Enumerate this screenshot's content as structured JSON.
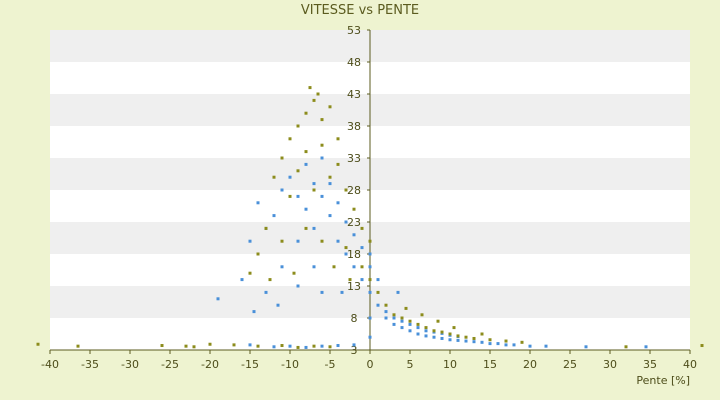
{
  "chart_data": {
    "type": "scatter",
    "title": "VITESSE vs PENTE",
    "xlabel": "Pente [%]",
    "ylabel": "",
    "xlim": [
      -40,
      40
    ],
    "ylim": [
      3,
      53
    ],
    "x_ticks": [
      "-40",
      "-35",
      "-30",
      "-25",
      "-20",
      "-15",
      "-10",
      "-5",
      "0",
      "5",
      "10",
      "15",
      "20",
      "25",
      "30",
      "35",
      "40"
    ],
    "y_ticks": [
      "3",
      "8",
      "13",
      "18",
      "23",
      "28",
      "33",
      "38",
      "43",
      "48",
      "53"
    ],
    "grid": "horizontal-bands",
    "legend": "none",
    "colors": {
      "series_a": "#4a90d9",
      "series_b": "#8c8c1c",
      "axis": "#5b5b1f",
      "band": "#efefef",
      "plot_bg": "#ffffff"
    },
    "series": [
      {
        "color": "#4a90d9",
        "points": [
          [
            -14,
            26
          ],
          [
            -13,
            22
          ],
          [
            -12,
            24
          ],
          [
            -11,
            28
          ],
          [
            -10,
            30
          ],
          [
            -9,
            27
          ],
          [
            -9,
            20
          ],
          [
            -8,
            32
          ],
          [
            -8,
            25
          ],
          [
            -7,
            29
          ],
          [
            -7,
            22
          ],
          [
            -6,
            27
          ],
          [
            -6,
            33
          ],
          [
            -5,
            24
          ],
          [
            -5,
            29
          ],
          [
            -4,
            26
          ],
          [
            -4,
            20
          ],
          [
            -3,
            23
          ],
          [
            -3,
            18
          ],
          [
            -2,
            21
          ],
          [
            -2,
            16
          ],
          [
            -1,
            19
          ],
          [
            -1,
            14
          ],
          [
            0,
            18
          ],
          [
            0,
            12
          ],
          [
            0,
            8
          ],
          [
            0,
            5
          ],
          [
            0,
            16
          ],
          [
            1,
            10
          ],
          [
            1,
            14
          ],
          [
            2,
            9
          ],
          [
            2,
            8
          ],
          [
            3,
            7
          ],
          [
            3,
            8
          ],
          [
            4,
            6.5
          ],
          [
            4,
            7.5
          ],
          [
            5,
            6
          ],
          [
            5,
            7
          ],
          [
            6,
            5.5
          ],
          [
            6,
            6.5
          ],
          [
            7,
            5.2
          ],
          [
            7,
            6.0
          ],
          [
            8,
            5.0
          ],
          [
            8,
            5.8
          ],
          [
            9,
            4.8
          ],
          [
            9,
            5.6
          ],
          [
            10,
            4.6
          ],
          [
            10,
            5.3
          ],
          [
            11,
            4.5
          ],
          [
            11,
            5.1
          ],
          [
            12,
            4.4
          ],
          [
            13,
            4.3
          ],
          [
            14,
            4.2
          ],
          [
            15,
            4.0
          ],
          [
            16,
            4.0
          ],
          [
            17,
            3.8
          ],
          [
            18,
            3.8
          ],
          [
            20,
            3.6
          ],
          [
            22,
            3.6
          ],
          [
            27,
            3.5
          ],
          [
            -19,
            11
          ],
          [
            -16,
            14
          ],
          [
            -15,
            20
          ],
          [
            -13,
            12
          ],
          [
            -11,
            16
          ],
          [
            -9,
            13
          ],
          [
            -7,
            16
          ],
          [
            -6,
            12
          ],
          [
            -15,
            3.8
          ],
          [
            -12,
            3.5
          ],
          [
            -10,
            3.6
          ],
          [
            -8,
            3.4
          ],
          [
            -6,
            3.6
          ],
          [
            -4,
            3.7
          ],
          [
            -2,
            3.8
          ],
          [
            34.5,
            3.5
          ],
          [
            -14.5,
            9
          ],
          [
            -11.5,
            10
          ],
          [
            -3.5,
            12
          ],
          [
            3.5,
            12
          ]
        ]
      },
      {
        "color": "#8c8c1c",
        "points": [
          [
            -10,
            36
          ],
          [
            -9,
            38
          ],
          [
            -8,
            40
          ],
          [
            -7,
            42
          ],
          [
            -6,
            39
          ],
          [
            -5,
            41
          ],
          [
            -4,
            36
          ],
          [
            -8,
            34
          ],
          [
            -6,
            35
          ],
          [
            -4,
            32
          ],
          [
            -11,
            33
          ],
          [
            -12,
            30
          ],
          [
            -10,
            27
          ],
          [
            -9,
            31
          ],
          [
            -7,
            28
          ],
          [
            -5,
            30
          ],
          [
            -3,
            28
          ],
          [
            -2,
            25
          ],
          [
            -1,
            22
          ],
          [
            0,
            20
          ],
          [
            -13,
            22
          ],
          [
            -14,
            18
          ],
          [
            -11,
            20
          ],
          [
            -8,
            22
          ],
          [
            -6,
            20
          ],
          [
            -3,
            19
          ],
          [
            -1,
            16
          ],
          [
            0,
            14
          ],
          [
            1,
            12
          ],
          [
            2,
            10
          ],
          [
            3,
            8.5
          ],
          [
            4,
            8
          ],
          [
            5,
            7.5
          ],
          [
            6,
            7
          ],
          [
            7,
            6.5
          ],
          [
            8,
            6
          ],
          [
            9,
            5.8
          ],
          [
            10,
            5.5
          ],
          [
            11,
            5.2
          ],
          [
            12,
            5.0
          ],
          [
            13,
            4.8
          ],
          [
            15,
            4.6
          ],
          [
            17,
            4.4
          ],
          [
            19,
            4.2
          ],
          [
            -41.5,
            3.9
          ],
          [
            -36.5,
            3.6
          ],
          [
            -26,
            3.7
          ],
          [
            -23,
            3.6
          ],
          [
            -22,
            3.5
          ],
          [
            -20,
            3.9
          ],
          [
            -17,
            3.8
          ],
          [
            -14,
            3.6
          ],
          [
            -11,
            3.7
          ],
          [
            -9,
            3.4
          ],
          [
            -7,
            3.6
          ],
          [
            -5,
            3.5
          ],
          [
            32,
            3.5
          ],
          [
            41.5,
            3.7
          ],
          [
            -7.5,
            44
          ],
          [
            -6.5,
            43
          ],
          [
            -15,
            15
          ],
          [
            -12.5,
            14
          ],
          [
            -9.5,
            15
          ],
          [
            -4.5,
            16
          ],
          [
            -2.5,
            14
          ],
          [
            4.5,
            9.5
          ],
          [
            6.5,
            8.5
          ],
          [
            8.5,
            7.5
          ],
          [
            10.5,
            6.5
          ],
          [
            14,
            5.5
          ]
        ]
      }
    ]
  }
}
